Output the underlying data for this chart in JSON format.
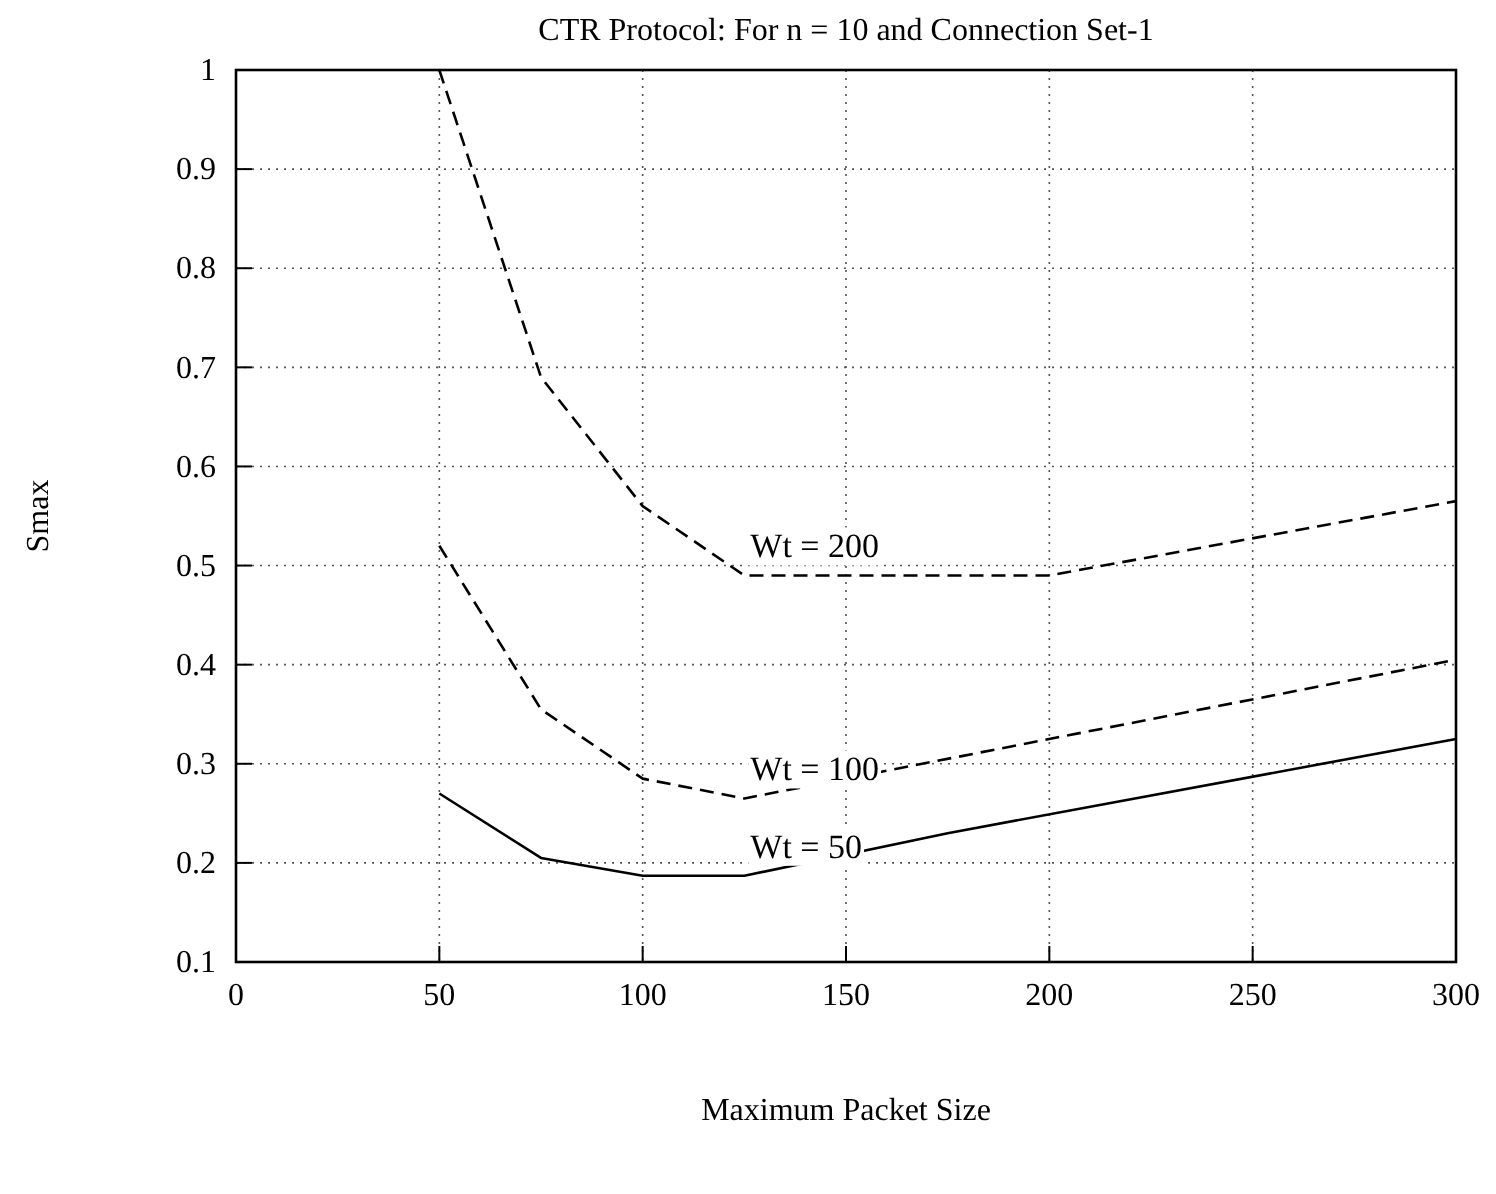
{
  "chart_data": {
    "type": "line",
    "title": "CTR Protocol: For n = 10 and Connection Set-1",
    "xlabel": "Maximum Packet Size",
    "ylabel": "Smax",
    "series": [
      {
        "name": "Wt = 200",
        "color": "#000000",
        "line_style": "dashed",
        "x": [
          50,
          75,
          100,
          125,
          200,
          300
        ],
        "values": [
          1.0,
          0.69,
          0.56,
          0.49,
          0.49,
          0.565
        ]
      },
      {
        "name": "Wt = 100",
        "color": "#000000",
        "line_style": "dashed",
        "x": [
          50,
          75,
          100,
          125,
          300
        ],
        "values": [
          0.52,
          0.355,
          0.285,
          0.265,
          0.405
        ]
      },
      {
        "name": "Wt = 50",
        "color": "#000000",
        "line_style": "solid",
        "x": [
          50,
          75,
          100,
          125,
          175,
          300
        ],
        "values": [
          0.27,
          0.205,
          0.187,
          0.187,
          0.23,
          0.325
        ]
      }
    ],
    "xlim": [
      0,
      300
    ],
    "xticks": [
      0,
      50,
      100,
      150,
      200,
      250,
      300
    ],
    "ylim": [
      0.1,
      1
    ],
    "yticks": [
      0.1,
      0.2,
      0.3,
      0.4,
      0.5,
      0.6,
      0.7,
      0.8,
      0.9,
      1
    ],
    "grid": true,
    "marker": "none"
  }
}
